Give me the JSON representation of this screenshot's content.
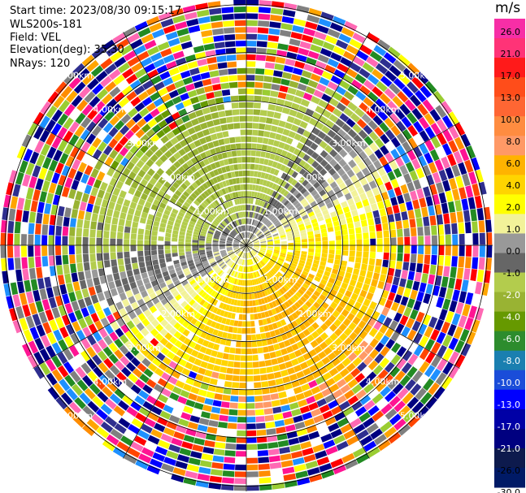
{
  "header": {
    "start_time": "Start time: 2023/08/30 09:15:17",
    "instrument": "WLS200s-181",
    "field": "Field: VEL",
    "elevation": "Elevation(deg): 35.30",
    "nrays": "NRays: 120"
  },
  "colorbar": {
    "unit": "m/s",
    "ticks": [
      "26.0",
      "21.0",
      "17.0",
      "13.0",
      "10.0",
      "8.0",
      "6.0",
      "4.0",
      "2.0",
      "1.0",
      "0.0",
      "-1.0",
      "-2.0",
      "-4.0",
      "-6.0",
      "-8.0",
      "-10.0",
      "-13.0",
      "-17.0",
      "-21.0",
      "-26.0",
      "-30.0"
    ],
    "colors": [
      "#f72ea6",
      "#ff3377",
      "#ff1a1a",
      "#ff4d1a",
      "#ff6633",
      "#ff8c40",
      "#ff9966",
      "#ffb300",
      "#ffd400",
      "#ffff00",
      "#f2f299",
      "#999999",
      "#666666",
      "#b3cc4d",
      "#99b333",
      "#669900",
      "#2d8c2d",
      "#1a7fb0",
      "#1a4dd9",
      "#0000ff",
      "#0000a6",
      "#000080",
      "#0d1a4d",
      "#001a66"
    ]
  },
  "chart_data": {
    "type": "ppi",
    "field": "VEL",
    "units": "m/s",
    "range_ring_labels": [
      "1.00km",
      "2.00km",
      "3.00km",
      "4.00km",
      "5.00km"
    ],
    "range_rings_km": [
      1,
      2,
      3,
      4,
      5
    ],
    "max_range_km": 5.5,
    "nrays": 120,
    "gates": 36,
    "elevation_deg": 35.3,
    "inner_sector": {
      "description_values": {
        "north_core": -6.0,
        "north_ring": -2.0,
        "south_core": 6.0,
        "east_wedge": 2.0,
        "west_wedge": -4.0
      }
    }
  }
}
